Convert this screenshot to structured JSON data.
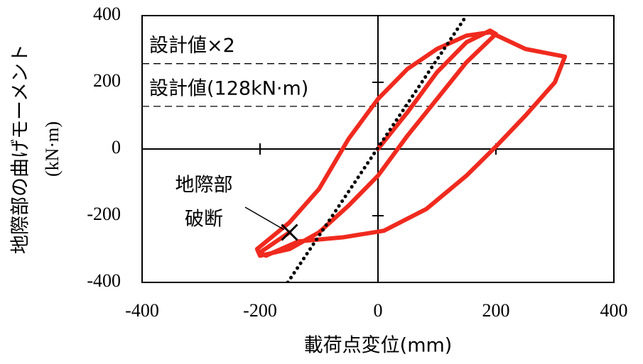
{
  "chart_data": {
    "type": "line",
    "x_label": "載荷点変位(mm)",
    "y_label": "地際部の曲げモーメント",
    "y_unit": "(kN·m)",
    "xlim": [
      -400,
      400
    ],
    "xticks": [
      -400,
      -200,
      0,
      200,
      400
    ],
    "ylim": [
      -400,
      400
    ],
    "yticks": [
      -400,
      -200,
      0,
      200,
      400
    ],
    "series": [
      {
        "color": "#f02a1e",
        "width": 6,
        "x": [
          0,
          50,
          100,
          150,
          190,
          200,
          150,
          100,
          50,
          0,
          -50,
          -100,
          -150,
          -200,
          -205,
          -150,
          -100,
          -50,
          0,
          50,
          100,
          150,
          190,
          250,
          317,
          300,
          250,
          202,
          150,
          82,
          10,
          -60,
          -135,
          -190,
          -200,
          -150
        ],
        "values": [
          0,
          110,
          230,
          320,
          355,
          345,
          260,
          150,
          40,
          -80,
          -170,
          -250,
          -300,
          -320,
          -300,
          -220,
          -120,
          30,
          150,
          240,
          300,
          340,
          350,
          300,
          277,
          200,
          100,
          11,
          -80,
          -180,
          -245,
          -265,
          -277,
          -320,
          -310,
          -250
        ]
      },
      {
        "color": "#000000",
        "width": 5,
        "dotted": true,
        "x": [
          -153,
          150
        ],
        "values": [
          -400,
          400
        ]
      }
    ],
    "reference_lines": [
      {
        "label": "設計値×2",
        "y": 256
      },
      {
        "label": "設計値(128kN·m)",
        "y": 128
      }
    ],
    "fracture": {
      "label": [
        "地際部",
        "破断"
      ],
      "x": -150,
      "y": -250
    }
  }
}
